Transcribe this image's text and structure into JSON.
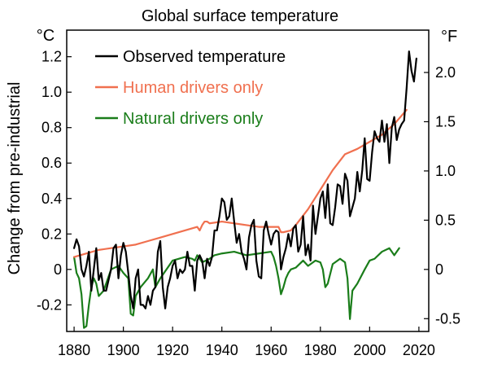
{
  "chart_data": {
    "type": "line",
    "title": "Global surface temperature",
    "ylabel": "Change from pre-industrial",
    "xlabel": "",
    "y_unit_left": "°C",
    "y_unit_right": "°F",
    "xlim": [
      1877,
      2024
    ],
    "ylim": [
      -0.35,
      1.35
    ],
    "x_ticks": [
      1880,
      1900,
      1920,
      1940,
      1960,
      1980,
      2000,
      2020
    ],
    "x_tick_labels": [
      "1880",
      "1900",
      "1920",
      "1940",
      "1960",
      "1980",
      "2000",
      "2020"
    ],
    "y_ticks": [
      -0.2,
      0,
      0.2,
      0.4,
      0.6,
      0.8,
      1.0,
      1.2
    ],
    "y_tick_labels": [
      "-0.2",
      "0",
      "0.2",
      "0.4",
      "0.6",
      "0.8",
      "1.0",
      "1.2"
    ],
    "y_right_ticks": [
      -0.5,
      0,
      0.5,
      1.0,
      1.5,
      2.0
    ],
    "y_right_tick_labels": [
      "-0.5",
      "0",
      "0.5",
      "1.0",
      "1.5",
      "2.0"
    ],
    "grid": false,
    "legend": "top-left",
    "series": [
      {
        "name": "Observed temperature",
        "color": "#000000",
        "x": [
          1880,
          1881,
          1882,
          1883,
          1884,
          1885,
          1886,
          1887,
          1888,
          1889,
          1890,
          1891,
          1892,
          1893,
          1894,
          1895,
          1896,
          1897,
          1898,
          1899,
          1900,
          1901,
          1902,
          1903,
          1904,
          1905,
          1906,
          1907,
          1908,
          1909,
          1910,
          1911,
          1912,
          1913,
          1914,
          1915,
          1916,
          1917,
          1918,
          1919,
          1920,
          1921,
          1922,
          1923,
          1924,
          1925,
          1926,
          1927,
          1928,
          1929,
          1930,
          1931,
          1932,
          1933,
          1934,
          1935,
          1936,
          1937,
          1938,
          1939,
          1940,
          1941,
          1942,
          1943,
          1944,
          1945,
          1946,
          1947,
          1948,
          1949,
          1950,
          1951,
          1952,
          1953,
          1954,
          1955,
          1956,
          1957,
          1958,
          1959,
          1960,
          1961,
          1962,
          1963,
          1964,
          1965,
          1966,
          1967,
          1968,
          1969,
          1970,
          1971,
          1972,
          1973,
          1974,
          1975,
          1976,
          1977,
          1978,
          1979,
          1980,
          1981,
          1982,
          1983,
          1984,
          1985,
          1986,
          1987,
          1988,
          1989,
          1990,
          1991,
          1992,
          1993,
          1994,
          1995,
          1996,
          1997,
          1998,
          1999,
          2000,
          2001,
          2002,
          2003,
          2004,
          2005,
          2006,
          2007,
          2008,
          2009,
          2010,
          2011,
          2012,
          2013,
          2014,
          2015,
          2016,
          2017,
          2018,
          2019
        ],
        "values": [
          0.12,
          0.17,
          0.13,
          0.0,
          -0.04,
          0.02,
          0.1,
          -0.12,
          0.0,
          0.12,
          -0.06,
          -0.02,
          -0.12,
          -0.12,
          -0.06,
          0.0,
          0.12,
          0.14,
          -0.05,
          0.08,
          0.15,
          0.1,
          -0.02,
          -0.15,
          -0.22,
          -0.05,
          0.0,
          -0.2,
          -0.2,
          -0.22,
          -0.15,
          -0.2,
          -0.12,
          -0.1,
          0.1,
          0.16,
          -0.1,
          -0.22,
          -0.1,
          -0.05,
          0.02,
          0.05,
          -0.05,
          0.0,
          -0.02,
          0.0,
          0.1,
          0.02,
          0.02,
          -0.12,
          0.05,
          0.08,
          0.05,
          -0.05,
          0.06,
          0.02,
          0.07,
          0.22,
          0.22,
          0.3,
          0.4,
          0.38,
          0.28,
          0.3,
          0.4,
          0.27,
          0.15,
          0.2,
          0.1,
          0.06,
          0.0,
          0.18,
          0.25,
          0.28,
          0.05,
          -0.04,
          -0.05,
          0.22,
          0.27,
          0.2,
          0.14,
          0.2,
          0.22,
          0.21,
          0.0,
          0.07,
          0.12,
          0.2,
          0.13,
          0.23,
          0.25,
          0.1,
          0.14,
          0.3,
          0.08,
          0.14,
          0.05,
          0.36,
          0.2,
          0.3,
          0.4,
          0.44,
          0.29,
          0.48,
          0.26,
          0.25,
          0.35,
          0.48,
          0.47,
          0.37,
          0.54,
          0.5,
          0.3,
          0.35,
          0.4,
          0.55,
          0.44,
          0.56,
          0.74,
          0.51,
          0.5,
          0.66,
          0.78,
          0.74,
          0.72,
          0.84,
          0.72,
          0.82,
          0.6,
          0.8,
          0.86,
          0.73,
          0.79,
          0.82,
          0.84,
          1.02,
          1.23,
          1.12,
          1.06,
          1.19
        ]
      },
      {
        "name": "Human drivers only",
        "color": "#f0704f",
        "x": [
          1880,
          1885,
          1890,
          1895,
          1900,
          1905,
          1910,
          1915,
          1920,
          1925,
          1930,
          1931,
          1932,
          1933,
          1934,
          1935,
          1940,
          1945,
          1950,
          1955,
          1960,
          1963,
          1964,
          1965,
          1968,
          1970,
          1975,
          1980,
          1985,
          1990,
          1995,
          2000,
          2005,
          2010,
          2015
        ],
        "values": [
          0.07,
          0.09,
          0.11,
          0.12,
          0.13,
          0.14,
          0.16,
          0.18,
          0.2,
          0.22,
          0.24,
          0.22,
          0.25,
          0.27,
          0.27,
          0.26,
          0.27,
          0.26,
          0.25,
          0.24,
          0.24,
          0.24,
          0.21,
          0.21,
          0.22,
          0.25,
          0.34,
          0.45,
          0.56,
          0.65,
          0.68,
          0.72,
          0.76,
          0.82,
          0.9
        ]
      },
      {
        "name": "Natural drivers only",
        "color": "#1a7d1a",
        "x": [
          1880,
          1881,
          1882,
          1883,
          1884,
          1885,
          1886,
          1887,
          1888,
          1889,
          1890,
          1892,
          1895,
          1898,
          1900,
          1902,
          1903,
          1904,
          1905,
          1907,
          1910,
          1912,
          1913,
          1915,
          1920,
          1925,
          1928,
          1929,
          1930,
          1932,
          1935,
          1937,
          1940,
          1945,
          1950,
          1955,
          1960,
          1961,
          1962,
          1963,
          1964,
          1965,
          1966,
          1967,
          1968,
          1970,
          1973,
          1975,
          1978,
          1980,
          1981,
          1982,
          1983,
          1985,
          1988,
          1990,
          1991,
          1992,
          1993,
          1995,
          1998,
          2000,
          2002,
          2005,
          2008,
          2010,
          2012
        ],
        "values": [
          0.07,
          -0.02,
          -0.05,
          -0.14,
          -0.33,
          -0.32,
          -0.2,
          -0.1,
          -0.05,
          -0.08,
          -0.15,
          -0.12,
          0.0,
          0.02,
          -0.02,
          -0.05,
          -0.25,
          -0.26,
          -0.15,
          -0.1,
          -0.05,
          0.0,
          -0.1,
          -0.05,
          0.05,
          0.07,
          0.06,
          0.05,
          0.08,
          0.04,
          0.06,
          0.08,
          0.09,
          0.1,
          0.08,
          0.09,
          0.1,
          0.07,
          0.02,
          -0.05,
          -0.14,
          -0.1,
          -0.05,
          -0.02,
          0.0,
          0.01,
          0.05,
          0.02,
          0.05,
          0.04,
          0.0,
          -0.1,
          -0.08,
          0.03,
          0.06,
          0.04,
          -0.05,
          -0.28,
          -0.12,
          -0.08,
          0.0,
          0.05,
          0.06,
          0.1,
          0.12,
          0.08,
          0.12
        ]
      }
    ]
  }
}
